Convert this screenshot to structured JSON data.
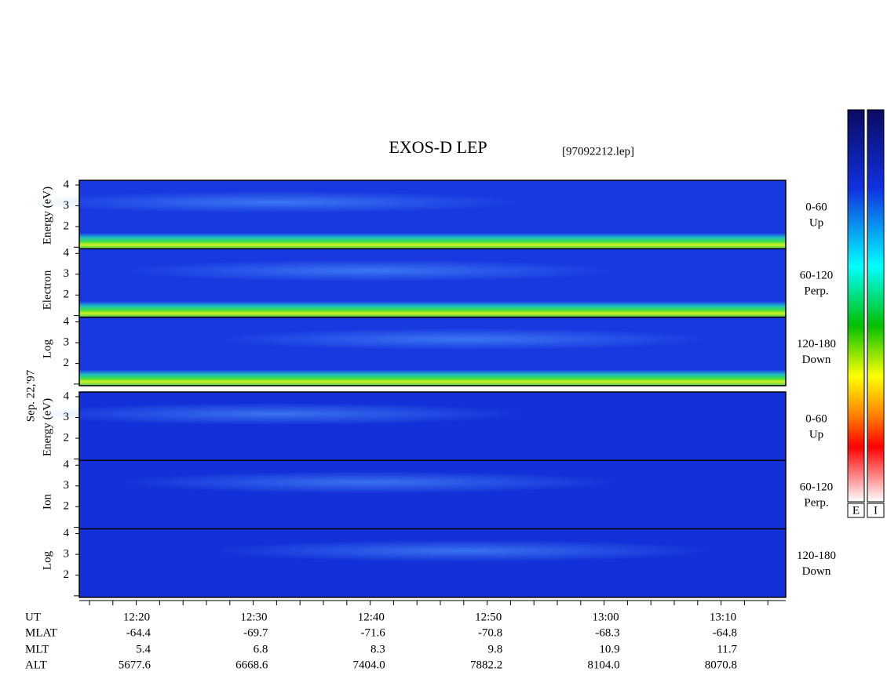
{
  "title": "EXOS-D LEP",
  "file": "[97092212.lep]",
  "date": "Sep. 22,'97",
  "electron": {
    "axis_label": [
      "Log",
      "Electron",
      "Energy (eV)"
    ],
    "panels": [
      {
        "range": "0-60",
        "direction": "Up"
      },
      {
        "range": "60-120",
        "direction": "Perp."
      },
      {
        "range": "120-180",
        "direction": "Down"
      }
    ]
  },
  "ion": {
    "axis_label": [
      "Log",
      "Ion",
      "Energy (eV)"
    ],
    "panels": [
      {
        "range": "0-60",
        "direction": "Up"
      },
      {
        "range": "60-120",
        "direction": "Perp."
      },
      {
        "range": "120-180",
        "direction": "Down"
      }
    ]
  },
  "yticks": [
    4,
    3,
    2
  ],
  "time_axis": {
    "rows": [
      {
        "label": "UT",
        "values": [
          "12:20",
          "12:30",
          "12:40",
          "12:50",
          "13:00",
          "13:10"
        ]
      },
      {
        "label": "MLAT",
        "values": [
          "-64.4",
          "-69.7",
          "-71.6",
          "-70.8",
          "-68.3",
          "-64.8"
        ]
      },
      {
        "label": "MLT",
        "values": [
          "5.4",
          "6.8",
          "8.3",
          "9.8",
          "10.9",
          "11.7"
        ]
      },
      {
        "label": "ALT",
        "values": [
          "5677.6",
          "6668.6",
          "7404.0",
          "7882.2",
          "8104.0",
          "8070.8"
        ]
      }
    ]
  },
  "colorbars": [
    "E",
    "I"
  ]
}
